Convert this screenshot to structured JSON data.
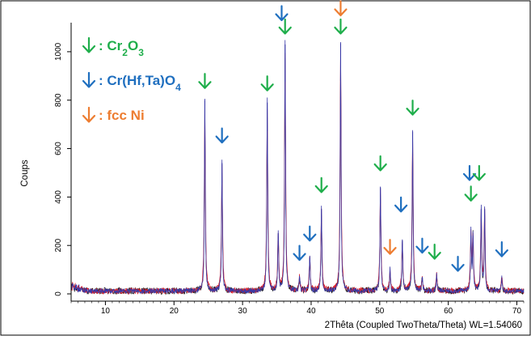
{
  "chart_data": {
    "type": "line",
    "title": "",
    "xlabel": "2Thêta (Coupled TwoTheta/Theta) WL=1.54060",
    "ylabel": "Coups",
    "xlim": [
      5,
      71
    ],
    "ylim": [
      -30,
      1120
    ],
    "x_ticks": [
      10,
      20,
      30,
      40,
      50,
      60,
      70
    ],
    "y_ticks": [
      0,
      200,
      400,
      600,
      800,
      1000
    ],
    "grid": false,
    "legend_position": "top-left",
    "colors": {
      "cr2o3": "#1fae4b",
      "crhftao4": "#1f6fbf",
      "fccni": "#ed7d31",
      "trace_blue": "#3a3aa8",
      "trace_red": "#e0202a",
      "trace_black": "#111111"
    },
    "legend": [
      {
        "key": "cr2o3",
        "prefix": "↓: ",
        "parts": [
          [
            "Cr",
            ""
          ],
          [
            "2",
            "sub"
          ],
          [
            "O",
            ""
          ],
          [
            "3",
            "sub"
          ]
        ]
      },
      {
        "key": "crhftao4",
        "prefix": "↓: ",
        "parts": [
          [
            "Cr(Hf,Ta)O",
            ""
          ],
          [
            "4",
            "sub"
          ]
        ]
      },
      {
        "key": "fccni",
        "prefix": "↓: ",
        "parts": [
          [
            "fcc Ni",
            ""
          ]
        ]
      }
    ],
    "peaks": [
      {
        "x": 24.5,
        "y": 800,
        "phase": "cr2o3"
      },
      {
        "x": 27.0,
        "y": 540,
        "phase": "crhftao4"
      },
      {
        "x": 33.6,
        "y": 790,
        "phase": "cr2o3"
      },
      {
        "x": 35.2,
        "y": 250,
        "phase": ""
      },
      {
        "x": 36.2,
        "y": 1030,
        "phase": "cr2o3"
      },
      {
        "x": 38.3,
        "y": 60,
        "phase": ""
      },
      {
        "x": 39.8,
        "y": 150,
        "phase": ""
      },
      {
        "x": 41.5,
        "y": 350,
        "phase": "cr2o3"
      },
      {
        "x": 44.3,
        "y": 1035,
        "phase": "fccni"
      },
      {
        "x": 50.1,
        "y": 440,
        "phase": "cr2o3"
      },
      {
        "x": 51.5,
        "y": 90,
        "phase": ""
      },
      {
        "x": 53.3,
        "y": 220,
        "phase": ""
      },
      {
        "x": 54.8,
        "y": 670,
        "phase": "cr2o3"
      },
      {
        "x": 56.2,
        "y": 60,
        "phase": ""
      },
      {
        "x": 58.3,
        "y": 70,
        "phase": ""
      },
      {
        "x": 63.3,
        "y": 240,
        "phase": ""
      },
      {
        "x": 63.6,
        "y": 240,
        "phase": ""
      },
      {
        "x": 64.8,
        "y": 350,
        "phase": ""
      },
      {
        "x": 65.3,
        "y": 350,
        "phase": ""
      },
      {
        "x": 67.8,
        "y": 60,
        "phase": ""
      }
    ],
    "markers": [
      {
        "phase": "cr2o3",
        "x": 24.5,
        "y": 845
      },
      {
        "phase": "crhftao4",
        "x": 27.0,
        "y": 620
      },
      {
        "phase": "cr2o3",
        "x": 33.6,
        "y": 835
      },
      {
        "phase": "crhftao4",
        "x": 35.7,
        "y": 1125
      },
      {
        "phase": "cr2o3",
        "x": 36.2,
        "y": 1070
      },
      {
        "phase": "crhftao4",
        "x": 38.3,
        "y": 135
      },
      {
        "phase": "crhftao4",
        "x": 39.8,
        "y": 215
      },
      {
        "phase": "cr2o3",
        "x": 41.5,
        "y": 415
      },
      {
        "phase": "fccni",
        "x": 44.3,
        "y": 1145
      },
      {
        "phase": "cr2o3",
        "x": 44.3,
        "y": 1070
      },
      {
        "phase": "cr2o3",
        "x": 50.1,
        "y": 505
      },
      {
        "phase": "fccni",
        "x": 51.5,
        "y": 160
      },
      {
        "phase": "crhftao4",
        "x": 53.1,
        "y": 335
      },
      {
        "phase": "cr2o3",
        "x": 54.8,
        "y": 735
      },
      {
        "phase": "crhftao4",
        "x": 56.2,
        "y": 165
      },
      {
        "phase": "cr2o3",
        "x": 58.0,
        "y": 140
      },
      {
        "phase": "crhftao4",
        "x": 61.4,
        "y": 90
      },
      {
        "phase": "crhftao4",
        "x": 63.1,
        "y": 465
      },
      {
        "phase": "cr2o3",
        "x": 64.5,
        "y": 465
      },
      {
        "phase": "cr2o3",
        "x": 63.3,
        "y": 380
      },
      {
        "phase": "crhftao4",
        "x": 67.8,
        "y": 150
      }
    ]
  }
}
